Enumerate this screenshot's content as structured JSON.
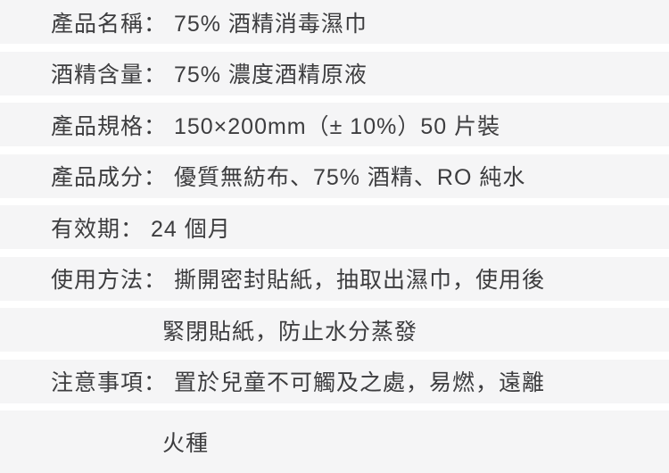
{
  "colors": {
    "band_bg": "#f5f5f6",
    "gap_bg": "#ffffff",
    "text": "#3d3d3f"
  },
  "spec_list": {
    "lines": [
      {
        "id": "product-name",
        "text": "產品名稱： 75% 酒精消毒濕巾",
        "indent": false
      },
      {
        "id": "alcohol-content",
        "text": "酒精含量： 75% 濃度酒精原液",
        "indent": false
      },
      {
        "id": "product-spec",
        "text": "產品規格： 150×200mm（± 10%）50 片裝",
        "indent": false
      },
      {
        "id": "ingredients",
        "text": "產品成分： 優質無紡布、75% 酒精、RO 純水",
        "indent": false
      },
      {
        "id": "shelf-life",
        "text": "有效期： 24 個月",
        "indent": false
      },
      {
        "id": "usage-line-1",
        "text": "使用方法： 撕開密封貼紙，抽取出濕巾，使用後",
        "indent": false
      },
      {
        "id": "usage-line-2",
        "text": "緊閉貼紙，防止水分蒸發",
        "indent": true
      },
      {
        "id": "warnings-line-1",
        "text": "注意事項： 置於兒童不可觸及之處，易燃，遠離",
        "indent": false
      },
      {
        "id": "warnings-line-2",
        "text": "火種",
        "indent": true
      }
    ]
  }
}
